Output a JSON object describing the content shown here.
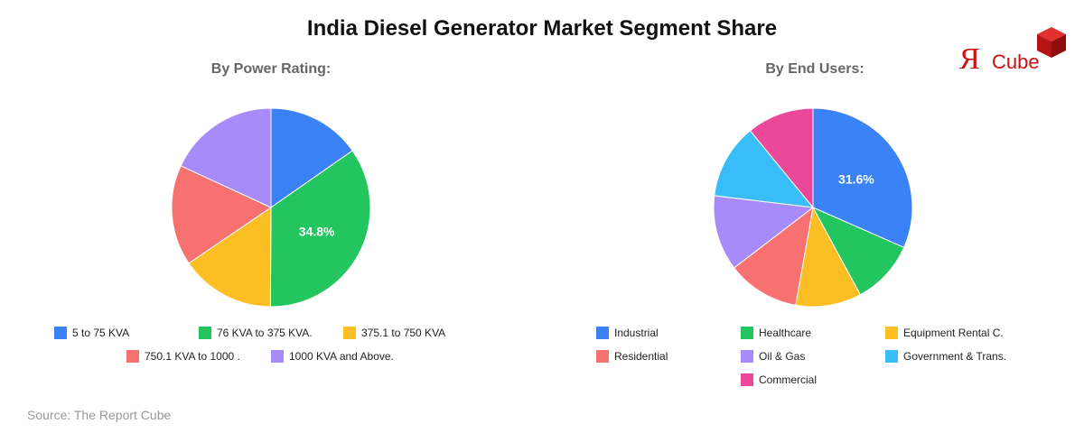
{
  "title": "India Diesel Generator Market Segment Share",
  "source": "Source: The Report Cube",
  "logo": {
    "brand_mark": "Я",
    "brand_text": "Cube",
    "accent": "#cc1111"
  },
  "chart_data": [
    {
      "type": "pie",
      "title": "By Power Rating:",
      "categories": [
        "5 to 75 KVA",
        "76 KVA to 375 KVA.",
        "375.1 to 750 KVA",
        "750.1 KVA to 1000 .",
        "1000 KVA and Above."
      ],
      "values": [
        15.3,
        34.8,
        15.4,
        16.4,
        18.1
      ],
      "colors": [
        "#3b82f6",
        "#22c55e",
        "#fbbf24",
        "#f87171",
        "#a78bfa"
      ],
      "data_labels": [
        "",
        "34.8%",
        "",
        "",
        ""
      ],
      "legend": "bottom"
    },
    {
      "type": "pie",
      "title": "By End Users:",
      "categories": [
        "Industrial",
        "Healthcare",
        "Equipment Rental C.",
        "Residential",
        "Oil & Gas",
        "Government & Trans.",
        "Commercial"
      ],
      "values": [
        31.6,
        10.5,
        10.7,
        11.8,
        12.3,
        12.2,
        10.9
      ],
      "colors": [
        "#3b82f6",
        "#22c55e",
        "#fbbf24",
        "#f87171",
        "#a78bfa",
        "#38bdf8",
        "#ec4899"
      ],
      "data_labels": [
        "31.6%",
        "",
        "",
        "",
        "",
        "",
        ""
      ],
      "legend": "bottom"
    }
  ]
}
